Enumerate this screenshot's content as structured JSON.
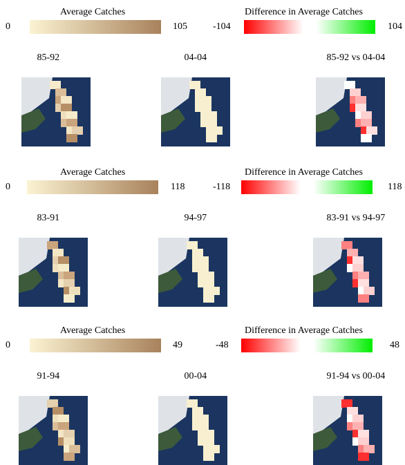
{
  "panels": [
    {
      "avg_legend": {
        "title": "Average Catches",
        "min": 0,
        "max": 105
      },
      "diff_legend": {
        "title": "Difference in Average Catches",
        "min": -104,
        "max": 104
      },
      "maps": [
        "85-92",
        "04-04",
        "85-92 vs 04-04"
      ]
    },
    {
      "avg_legend": {
        "title": "Average Catches",
        "min": 0,
        "max": 118
      },
      "diff_legend": {
        "title": "Difference in Average Catches",
        "min": -118,
        "max": 118
      },
      "maps": [
        "83-91",
        "94-97",
        "83-91 vs 94-97"
      ]
    },
    {
      "avg_legend": {
        "title": "Average Catches",
        "min": 0,
        "max": 49
      },
      "diff_legend": {
        "title": "Difference in Average Catches",
        "min": -48,
        "max": 48
      },
      "maps": [
        "91-94",
        "00-04",
        "91-94 vs 00-04"
      ]
    }
  ]
}
